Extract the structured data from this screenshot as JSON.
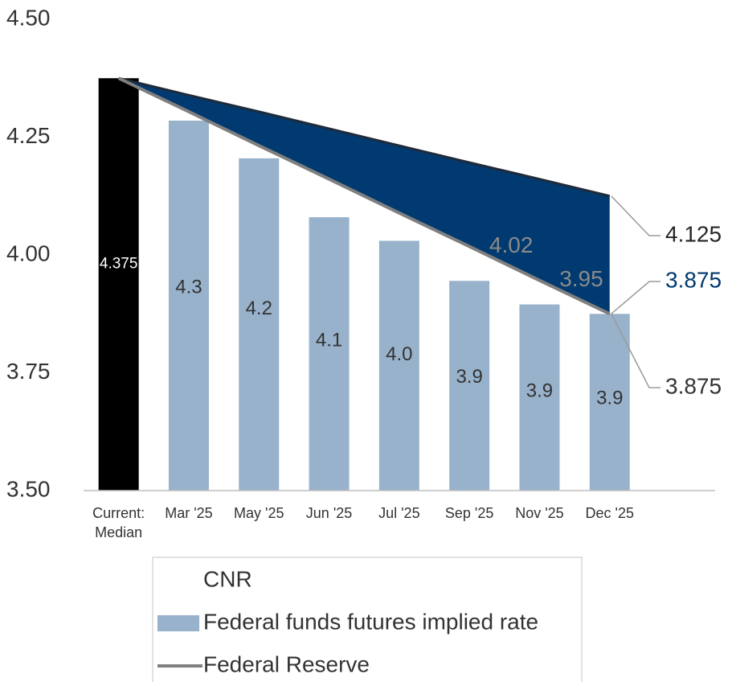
{
  "chart_data": {
    "type": "bar",
    "categories": [
      "Current: Median",
      "Mar '25",
      "May '25",
      "Jun '25",
      "Jul '25",
      "Sep '25",
      "Nov '25",
      "Dec '25"
    ],
    "series": [
      {
        "name": "CNR",
        "kind": "area",
        "color": "#003a70",
        "values": [
          4.375,
          4.339,
          4.304,
          4.268,
          4.232,
          4.196,
          4.161,
          4.125
        ]
      },
      {
        "name": "Federal funds futures implied rate",
        "kind": "bar",
        "color": "#98b2cb",
        "colors": [
          "#000000",
          "#98b2cb",
          "#98b2cb",
          "#98b2cb",
          "#98b2cb",
          "#98b2cb",
          "#98b2cb",
          "#98b2cb"
        ],
        "values": [
          4.375,
          4.285,
          4.205,
          4.08,
          4.03,
          3.945,
          3.895,
          3.875
        ],
        "value_labels": [
          "4.375",
          "4.3",
          "4.2",
          "4.1",
          "4.0",
          "3.9",
          "3.9",
          "3.9"
        ]
      },
      {
        "name": "Federal Reserve",
        "kind": "line",
        "color": "#7f7f7f",
        "values": [
          4.375,
          4.304,
          4.232,
          4.161,
          4.089,
          4.018,
          3.946,
          3.875
        ],
        "value_labels": [
          null,
          null,
          null,
          null,
          null,
          "4.02",
          "3.95",
          null
        ]
      }
    ],
    "annotations": [
      {
        "text": "4.125",
        "value": 4.125,
        "color": "#262626"
      },
      {
        "text": "3.875",
        "value": 3.875,
        "color": "#003a70"
      },
      {
        "text": "3.875",
        "value": 3.875,
        "color": "#333333"
      }
    ],
    "ylim": [
      3.5,
      4.5
    ],
    "yticks": [
      {
        "value": 3.5,
        "label": "3.50"
      },
      {
        "value": 3.75,
        "label": "3.75"
      },
      {
        "value": 4.0,
        "label": "4.00"
      },
      {
        "value": 4.25,
        "label": "4.25"
      },
      {
        "value": 4.5,
        "label": "4.50"
      }
    ],
    "grid": false,
    "legend": "bottom"
  }
}
